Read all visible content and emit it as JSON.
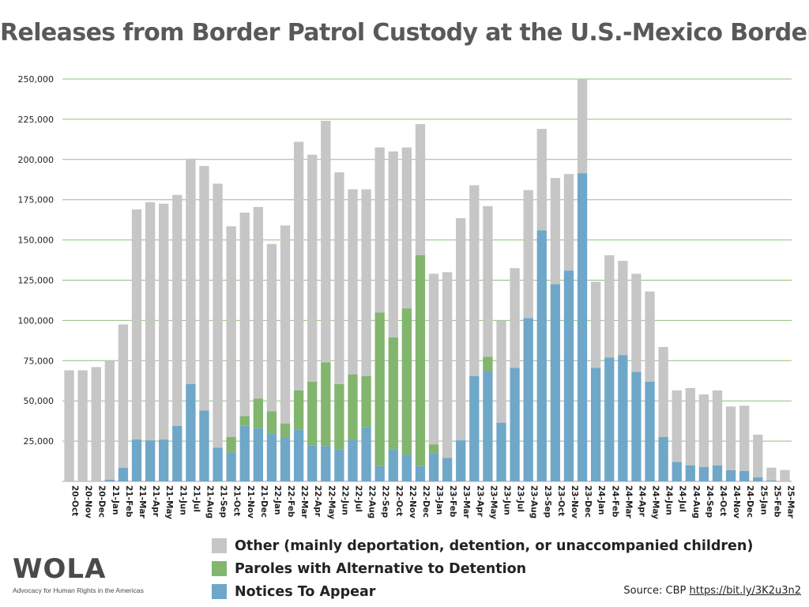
{
  "chart_data": {
    "type": "bar",
    "stacked": true,
    "title": "Releases from Border Patrol Custody at the U.S.-Mexico Border",
    "xlabel": "",
    "ylabel": "",
    "ylim": [
      0,
      250000
    ],
    "yticks": [
      "25,000",
      "50,000",
      "75,000",
      "100,000",
      "125,000",
      "150,000",
      "175,000",
      "200,000",
      "225,000",
      "250,000"
    ],
    "ytick_values": [
      25000,
      50000,
      75000,
      100000,
      125000,
      150000,
      175000,
      200000,
      225000,
      250000
    ],
    "grid": true,
    "legend_position": "bottom",
    "categories": [
      "20-Oct",
      "20-Nov",
      "20-Dec",
      "21-Jan",
      "21-Feb",
      "21-Mar",
      "21-Apr",
      "21-May",
      "21-Jun",
      "21-Jul",
      "21-Aug",
      "21-Sep",
      "21-Oct",
      "21-Nov",
      "21-Dec",
      "22-Jan",
      "22-Feb",
      "22-Mar",
      "22-Apr",
      "22-May",
      "22-Jun",
      "22-Jul",
      "22-Aug",
      "22-Sep",
      "22-Oct",
      "22-Nov",
      "22-Dec",
      "23-Jan",
      "23-Feb",
      "23-Mar",
      "23-Apr",
      "23-May",
      "23-Jun",
      "23-Jul",
      "23-Aug",
      "23-Sep",
      "23-Oct",
      "23-Nov",
      "23-Dec",
      "24-Jan",
      "24-Feb",
      "24-Mar",
      "24-Apr",
      "24-May",
      "24-Jun",
      "24-Jul",
      "24-Aug",
      "24-Sep",
      "24-Oct",
      "24-Nov",
      "24-Dec",
      "25-Jan",
      "25-Feb",
      "25-Mar"
    ],
    "series": [
      {
        "name": "Notices To Appear",
        "color": "#6fa7c9",
        "values": [
          0,
          0,
          0,
          1000,
          8500,
          26000,
          25500,
          26000,
          34500,
          60500,
          44000,
          21000,
          18000,
          34500,
          33000,
          29500,
          27000,
          32000,
          22500,
          22000,
          20000,
          26000,
          33500,
          9500,
          20000,
          16500,
          9500,
          17500,
          14500,
          25500,
          65500,
          68500,
          36500,
          70500,
          101500,
          156000,
          122500,
          131000,
          191500,
          70500,
          77000,
          78500,
          68000,
          62000,
          27500,
          12000,
          10000,
          9000,
          10000,
          7000,
          6500,
          2500,
          500,
          0
        ]
      },
      {
        "name": "Paroles with Alternative to Detention",
        "color": "#82b56e",
        "values": [
          0,
          0,
          0,
          0,
          0,
          0,
          0,
          0,
          0,
          0,
          0,
          0,
          9500,
          6000,
          18500,
          14000,
          9000,
          24500,
          39500,
          52000,
          40500,
          40500,
          32000,
          95500,
          69500,
          91000,
          131000,
          5500,
          0,
          0,
          0,
          9000,
          0,
          0,
          0,
          0,
          0,
          0,
          0,
          0,
          0,
          0,
          0,
          0,
          0,
          0,
          0,
          0,
          0,
          0,
          0,
          0,
          0,
          0
        ]
      },
      {
        "name": "Other (mainly deportation, detention, or unaccompanied children)",
        "color": "#c6c6c6",
        "values": [
          69000,
          69000,
          71000,
          74000,
          89000,
          143000,
          148000,
          146500,
          143500,
          140000,
          152000,
          164000,
          131000,
          126500,
          119000,
          104000,
          123000,
          154500,
          141000,
          150000,
          131500,
          115000,
          116000,
          102500,
          115500,
          100000,
          81500,
          106000,
          115500,
          138000,
          118500,
          93500,
          63500,
          62000,
          79500,
          63000,
          66000,
          60000,
          58500,
          53500,
          63500,
          58500,
          61000,
          56000,
          56000,
          44500,
          48000,
          45000,
          46500,
          39500,
          40500,
          26500,
          8000,
          7000
        ]
      }
    ]
  },
  "legend_order": [
    2,
    1,
    0
  ],
  "logo": {
    "text": "WOLA",
    "tagline": "Advocacy for Human Rights in the Americas"
  },
  "source": {
    "label": "Source: CBP",
    "link": "https://bit.ly/3K2u3n2"
  }
}
